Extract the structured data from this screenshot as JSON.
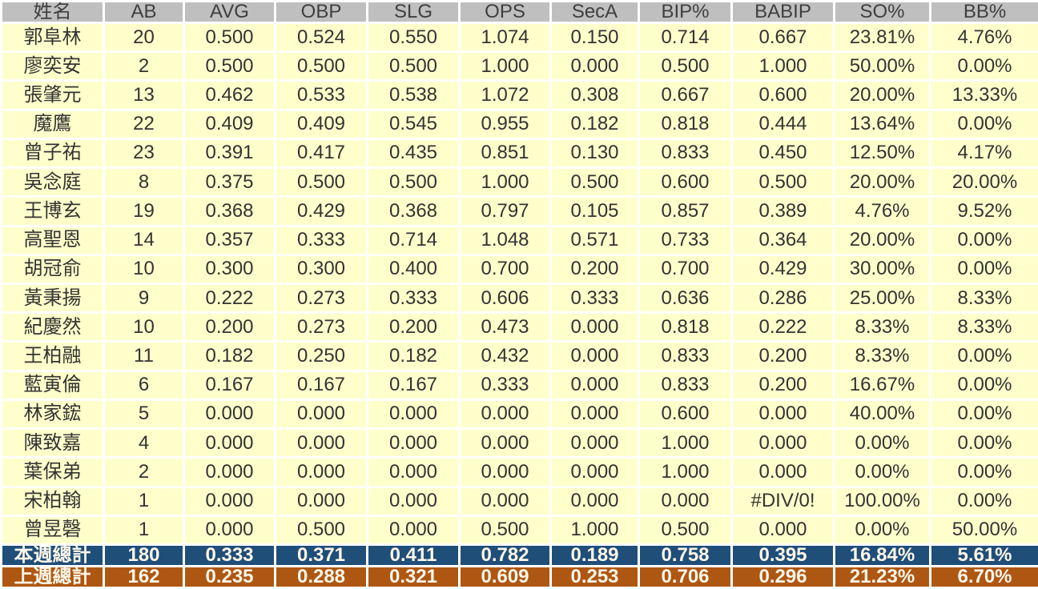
{
  "colors": {
    "header_bg": "#BFBFBF",
    "header_text": "#3F3F3F",
    "row_bg": "#FFFFCC",
    "data_text": "#333333",
    "grid": "#FFFFFF",
    "this_week_bg": "#1F4E79",
    "last_week_bg": "#AE5713",
    "total_text": "#FDF6E8"
  },
  "chart_data": {
    "type": "table",
    "columns": [
      {
        "key": "name",
        "label": "姓名"
      },
      {
        "key": "ab",
        "label": "AB"
      },
      {
        "key": "avg",
        "label": "AVG"
      },
      {
        "key": "obp",
        "label": "OBP"
      },
      {
        "key": "slg",
        "label": "SLG"
      },
      {
        "key": "ops",
        "label": "OPS"
      },
      {
        "key": "seca",
        "label": "SecA"
      },
      {
        "key": "bip",
        "label": "BIP%"
      },
      {
        "key": "babip",
        "label": "BABIP"
      },
      {
        "key": "so",
        "label": "SO%"
      },
      {
        "key": "bb",
        "label": "BB%"
      }
    ],
    "rows": [
      {
        "name": "郭阜林",
        "values": [
          "20",
          "0.500",
          "0.524",
          "0.550",
          "1.074",
          "0.150",
          "0.714",
          "0.667",
          "23.81%",
          "4.76%"
        ]
      },
      {
        "name": "廖奕安",
        "values": [
          "2",
          "0.500",
          "0.500",
          "0.500",
          "1.000",
          "0.000",
          "0.500",
          "1.000",
          "50.00%",
          "0.00%"
        ]
      },
      {
        "name": "張肇元",
        "values": [
          "13",
          "0.462",
          "0.533",
          "0.538",
          "1.072",
          "0.308",
          "0.667",
          "0.600",
          "20.00%",
          "13.33%"
        ]
      },
      {
        "name": "魔鷹",
        "values": [
          "22",
          "0.409",
          "0.409",
          "0.545",
          "0.955",
          "0.182",
          "0.818",
          "0.444",
          "13.64%",
          "0.00%"
        ]
      },
      {
        "name": "曾子祐",
        "values": [
          "23",
          "0.391",
          "0.417",
          "0.435",
          "0.851",
          "0.130",
          "0.833",
          "0.450",
          "12.50%",
          "4.17%"
        ]
      },
      {
        "name": "吳念庭",
        "values": [
          "8",
          "0.375",
          "0.500",
          "0.500",
          "1.000",
          "0.500",
          "0.600",
          "0.500",
          "20.00%",
          "20.00%"
        ]
      },
      {
        "name": "王博玄",
        "values": [
          "19",
          "0.368",
          "0.429",
          "0.368",
          "0.797",
          "0.105",
          "0.857",
          "0.389",
          "4.76%",
          "9.52%"
        ]
      },
      {
        "name": "高聖恩",
        "values": [
          "14",
          "0.357",
          "0.333",
          "0.714",
          "1.048",
          "0.571",
          "0.733",
          "0.364",
          "20.00%",
          "0.00%"
        ]
      },
      {
        "name": "胡冠俞",
        "values": [
          "10",
          "0.300",
          "0.300",
          "0.400",
          "0.700",
          "0.200",
          "0.700",
          "0.429",
          "30.00%",
          "0.00%"
        ]
      },
      {
        "name": "黃秉揚",
        "values": [
          "9",
          "0.222",
          "0.273",
          "0.333",
          "0.606",
          "0.333",
          "0.636",
          "0.286",
          "25.00%",
          "8.33%"
        ]
      },
      {
        "name": "紀慶然",
        "values": [
          "10",
          "0.200",
          "0.273",
          "0.200",
          "0.473",
          "0.000",
          "0.818",
          "0.222",
          "8.33%",
          "8.33%"
        ]
      },
      {
        "name": "王柏融",
        "values": [
          "11",
          "0.182",
          "0.250",
          "0.182",
          "0.432",
          "0.000",
          "0.833",
          "0.200",
          "8.33%",
          "0.00%"
        ]
      },
      {
        "name": "藍寅倫",
        "values": [
          "6",
          "0.167",
          "0.167",
          "0.167",
          "0.333",
          "0.000",
          "0.833",
          "0.200",
          "16.67%",
          "0.00%"
        ]
      },
      {
        "name": "林家鋐",
        "values": [
          "5",
          "0.000",
          "0.000",
          "0.000",
          "0.000",
          "0.000",
          "0.600",
          "0.000",
          "40.00%",
          "0.00%"
        ]
      },
      {
        "name": "陳致嘉",
        "values": [
          "4",
          "0.000",
          "0.000",
          "0.000",
          "0.000",
          "0.000",
          "1.000",
          "0.000",
          "0.00%",
          "0.00%"
        ]
      },
      {
        "name": "葉保弟",
        "values": [
          "2",
          "0.000",
          "0.000",
          "0.000",
          "0.000",
          "0.000",
          "1.000",
          "0.000",
          "0.00%",
          "0.00%"
        ]
      },
      {
        "name": "宋柏翰",
        "values": [
          "1",
          "0.000",
          "0.000",
          "0.000",
          "0.000",
          "0.000",
          "0.000",
          "#DIV/0!",
          "100.00%",
          "0.00%"
        ]
      },
      {
        "name": "曾昱磬",
        "values": [
          "1",
          "0.000",
          "0.500",
          "0.000",
          "0.500",
          "1.000",
          "0.500",
          "0.000",
          "0.00%",
          "50.00%"
        ]
      }
    ],
    "totals": [
      {
        "key": "this-week",
        "label": "本週總計",
        "bg": "#1F4E79",
        "values": [
          "180",
          "0.333",
          "0.371",
          "0.411",
          "0.782",
          "0.189",
          "0.758",
          "0.395",
          "16.84%",
          "5.61%"
        ]
      },
      {
        "key": "last-week",
        "label": "上週總計",
        "bg": "#AE5713",
        "values": [
          "162",
          "0.235",
          "0.288",
          "0.321",
          "0.609",
          "0.253",
          "0.706",
          "0.296",
          "21.23%",
          "6.70%"
        ]
      }
    ]
  }
}
